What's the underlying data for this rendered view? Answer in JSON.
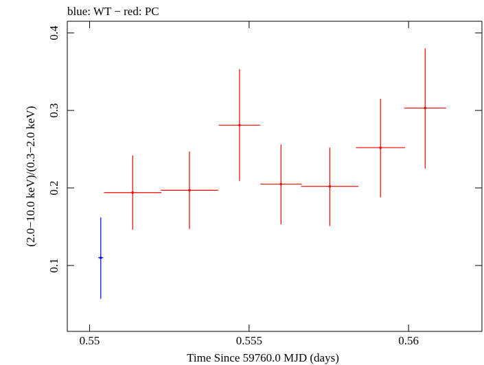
{
  "chart_data": {
    "type": "scatter",
    "title": "blue: WT − red: PC",
    "xlabel": "Time Since 59760.0 MJD (days)",
    "ylabel": "(2.0−10.0 keV)/(0.3−2.0 keV)",
    "xlim": [
      0.5493,
      0.5623
    ],
    "ylim": [
      0.015,
      0.415
    ],
    "x_ticks": [
      0.55,
      0.555,
      0.56
    ],
    "x_tick_labels": [
      "0.55",
      "0.555",
      "0.56"
    ],
    "y_ticks": [
      0.1,
      0.2,
      0.3,
      0.4
    ],
    "y_tick_labels": [
      "0.1",
      "0.2",
      "0.3",
      "0.4"
    ],
    "grid": false,
    "series": [
      {
        "color": "#0000ff",
        "points": [
          {
            "x": 0.55035,
            "y": 0.11,
            "xerr": 8e-05,
            "ylow": 0.057,
            "yhigh": 0.162
          }
        ]
      },
      {
        "color": "#ff0000",
        "points": [
          {
            "x": 0.55135,
            "y": 0.194,
            "xerr": 0.0009,
            "ylow": 0.146,
            "yhigh": 0.242
          },
          {
            "x": 0.55313,
            "y": 0.197,
            "xerr": 0.0009,
            "ylow": 0.147,
            "yhigh": 0.247
          },
          {
            "x": 0.5547,
            "y": 0.281,
            "xerr": 0.00065,
            "ylow": 0.209,
            "yhigh": 0.353
          },
          {
            "x": 0.556,
            "y": 0.205,
            "xerr": 0.00065,
            "ylow": 0.153,
            "yhigh": 0.256
          },
          {
            "x": 0.55753,
            "y": 0.202,
            "xerr": 0.0009,
            "ylow": 0.151,
            "yhigh": 0.252
          },
          {
            "x": 0.55912,
            "y": 0.252,
            "xerr": 0.00077,
            "ylow": 0.188,
            "yhigh": 0.315
          },
          {
            "x": 0.56052,
            "y": 0.303,
            "xerr": 0.00065,
            "ylow": 0.225,
            "yhigh": 0.38
          }
        ]
      }
    ]
  }
}
